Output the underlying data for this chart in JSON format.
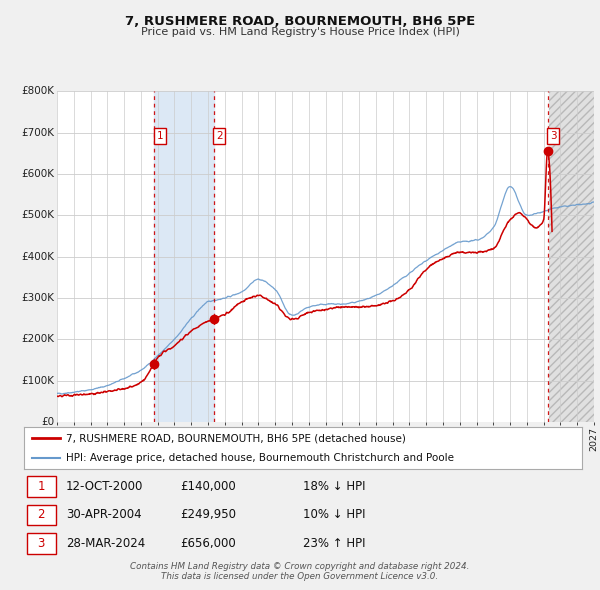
{
  "title": "7, RUSHMERE ROAD, BOURNEMOUTH, BH6 5PE",
  "subtitle": "Price paid vs. HM Land Registry's House Price Index (HPI)",
  "xlim": [
    1995.0,
    2027.0
  ],
  "ylim": [
    0,
    800000
  ],
  "yticks": [
    0,
    100000,
    200000,
    300000,
    400000,
    500000,
    600000,
    700000,
    800000
  ],
  "ytick_labels": [
    "£0",
    "£100K",
    "£200K",
    "£300K",
    "£400K",
    "£500K",
    "£600K",
    "£700K",
    "£800K"
  ],
  "sale_dates": [
    2000.786,
    2004.329,
    2024.233
  ],
  "sale_prices": [
    140000,
    249950,
    656000
  ],
  "sale_labels": [
    "1",
    "2",
    "3"
  ],
  "legend_line1": "7, RUSHMERE ROAD, BOURNEMOUTH, BH6 5PE (detached house)",
  "legend_line2": "HPI: Average price, detached house, Bournemouth Christchurch and Poole",
  "table_data": [
    [
      "1",
      "12-OCT-2000",
      "£140,000",
      "18% ↓ HPI"
    ],
    [
      "2",
      "30-APR-2004",
      "£249,950",
      "10% ↓ HPI"
    ],
    [
      "3",
      "28-MAR-2024",
      "£656,000",
      "23% ↑ HPI"
    ]
  ],
  "footer1": "Contains HM Land Registry data © Crown copyright and database right 2024.",
  "footer2": "This data is licensed under the Open Government Licence v3.0.",
  "line_color_red": "#cc0000",
  "line_color_blue": "#6699cc",
  "background_color": "#f0f0f0",
  "plot_bg_color": "#ffffff",
  "shade_color_blue": "#dce8f5",
  "future_hatch_color": "#d0d0d0",
  "grid_color": "#cccccc",
  "future_start": 2024.3
}
